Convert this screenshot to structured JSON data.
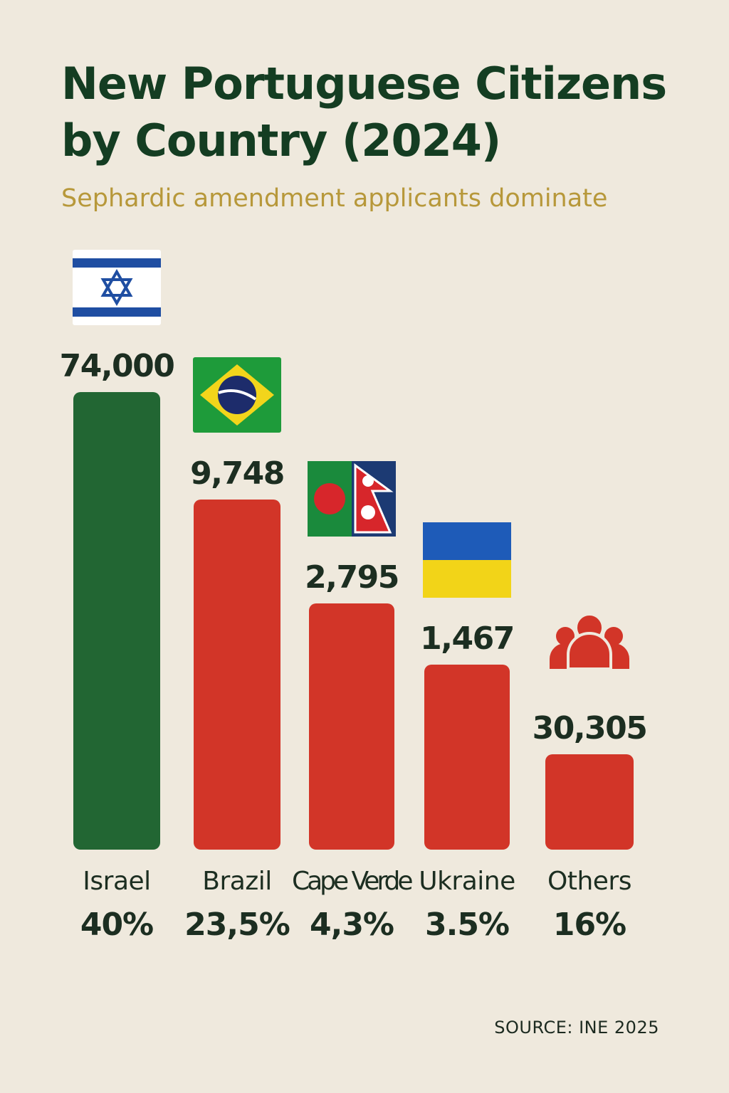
{
  "title": "New Portuguese Citizens by Country (2024)",
  "subtitle": "Sephardic amendment applicants dominate",
  "source": "SOURCE: INE 2025",
  "colors": {
    "background": "#efe9dd",
    "title": "#143d22",
    "subtitle": "#b7983a",
    "highlight_bar": "#226633",
    "bar": "#d23528",
    "value_label": "#1c2e21"
  },
  "chart_data": {
    "type": "bar",
    "title": "New Portuguese Citizens by Country (2024)",
    "subtitle": "Sephardic amendment applicants dominate",
    "categories": [
      "Israel",
      "Brazil",
      "Cape Verde",
      "Ukraine",
      "Others"
    ],
    "values": [
      74000,
      9748,
      2795,
      1467,
      30305
    ],
    "value_labels": [
      "74,000",
      "9,748",
      "2,795",
      "1,467",
      "30,305"
    ],
    "percent_labels": [
      "40%",
      "23,5%",
      "4,3%",
      "3.5%",
      "16%"
    ],
    "icons": [
      "israel-flag-icon",
      "brazil-flag-icon",
      "bangladesh-nepal-flag-icon",
      "ukraine-flag-icon",
      "people-group-icon"
    ],
    "bar_colors": [
      "#226633",
      "#d23528",
      "#d23528",
      "#d23528",
      "#d23528"
    ],
    "xlabel": "",
    "ylabel": "",
    "grid": false,
    "legend": "none"
  }
}
